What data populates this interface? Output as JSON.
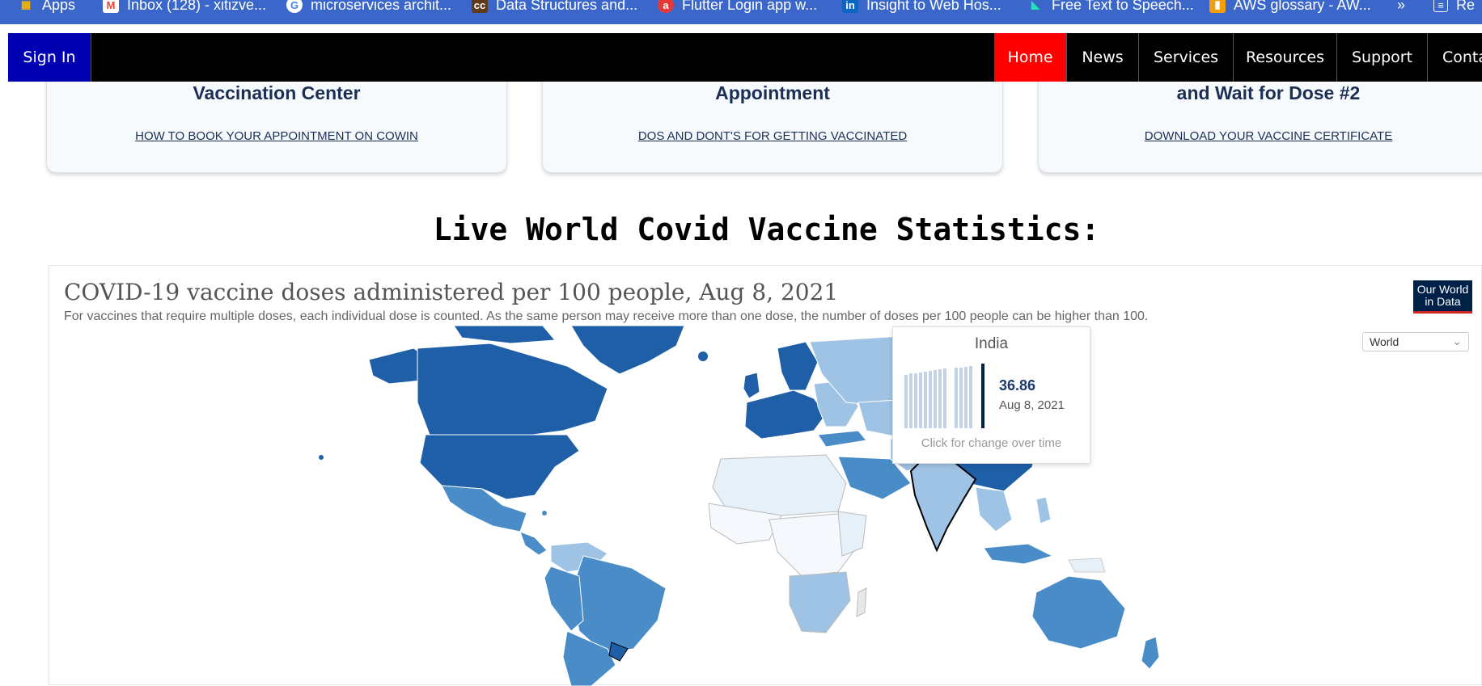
{
  "bookmarks": [
    {
      "label": "Apps",
      "icon": "apps-grid-icon",
      "color": "#f4b400"
    },
    {
      "label": "Inbox (128) - xitizve...",
      "icon": "gmail-icon",
      "color": "#ea4335"
    },
    {
      "label": "microservices archit...",
      "icon": "google-icon",
      "color": "#4285f4"
    },
    {
      "label": "Data Structures and...",
      "icon": "cc-icon",
      "color": "#5f3b1e"
    },
    {
      "label": "Flutter Login app w...",
      "icon": "flutter-app-icon",
      "color": "#e53935"
    },
    {
      "label": "Insight to Web Hos...",
      "icon": "linkedin-icon",
      "color": "#0a66c2"
    },
    {
      "label": "Free Text to Speech...",
      "icon": "tts-icon",
      "color": "#1de9b6"
    },
    {
      "label": "AWS glossary - AW...",
      "icon": "aws-icon",
      "color": "#f59e0b"
    },
    {
      "label": "»",
      "icon": "",
      "color": ""
    },
    {
      "label": "Re",
      "icon": "reading-list-icon",
      "color": "#ffffff"
    }
  ],
  "nav": {
    "sign_in": "Sign In",
    "items": [
      "Home",
      "News",
      "Services",
      "Resources",
      "Support",
      "Contact"
    ],
    "active": "Home"
  },
  "cards": [
    {
      "title": "Vaccination Center",
      "link": "HOW TO BOOK YOUR APPOINTMENT ON COWIN"
    },
    {
      "title": "Appointment",
      "link": "DOS AND DONT'S FOR GETTING VACCINATED"
    },
    {
      "title": "and Wait for Dose #2",
      "link": "DOWNLOAD YOUR VACCINE CERTIFICATE"
    }
  ],
  "heading": "Live World Covid Vaccine Statistics:",
  "chart": {
    "title": "COVID-19 vaccine doses administered per 100 people, Aug 8, 2021",
    "subtitle": "For vaccines that require multiple doses, each individual dose is counted. As the same person may receive more than one dose, the number of doses per 100 people can be higher than 100.",
    "logo_line1": "Our World",
    "logo_line2": "in Data",
    "region": "World",
    "tooltip": {
      "country": "India",
      "value": "36.86",
      "date": "Aug 8, 2021",
      "hint": "Click for change over time"
    },
    "colors": {
      "high": "#1f5fa8",
      "mid": "#4a8cc7",
      "low": "#9fc3e4",
      "lowest": "#e6f0f9",
      "nodata": "#e8e8e8"
    }
  }
}
